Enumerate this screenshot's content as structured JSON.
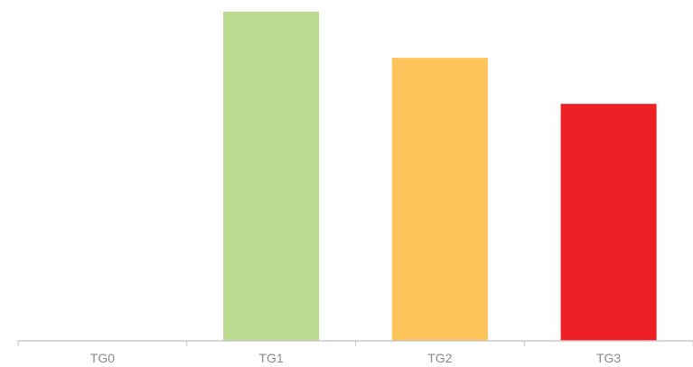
{
  "chart_data": {
    "type": "bar",
    "categories": [
      "TG0",
      "TG1",
      "TG2",
      "TG3"
    ],
    "values": [
      0,
      100,
      86,
      72
    ],
    "colors": [
      "#ffffff",
      "#b9da8f",
      "#fcc45a",
      "#ee1f25"
    ],
    "axis_color": "#c8c8c8",
    "tick_label_color": "#8a8a8a",
    "ylim": [
      0,
      100
    ],
    "grid": false,
    "legend": "none",
    "title": "",
    "xlabel": "",
    "ylabel": ""
  }
}
